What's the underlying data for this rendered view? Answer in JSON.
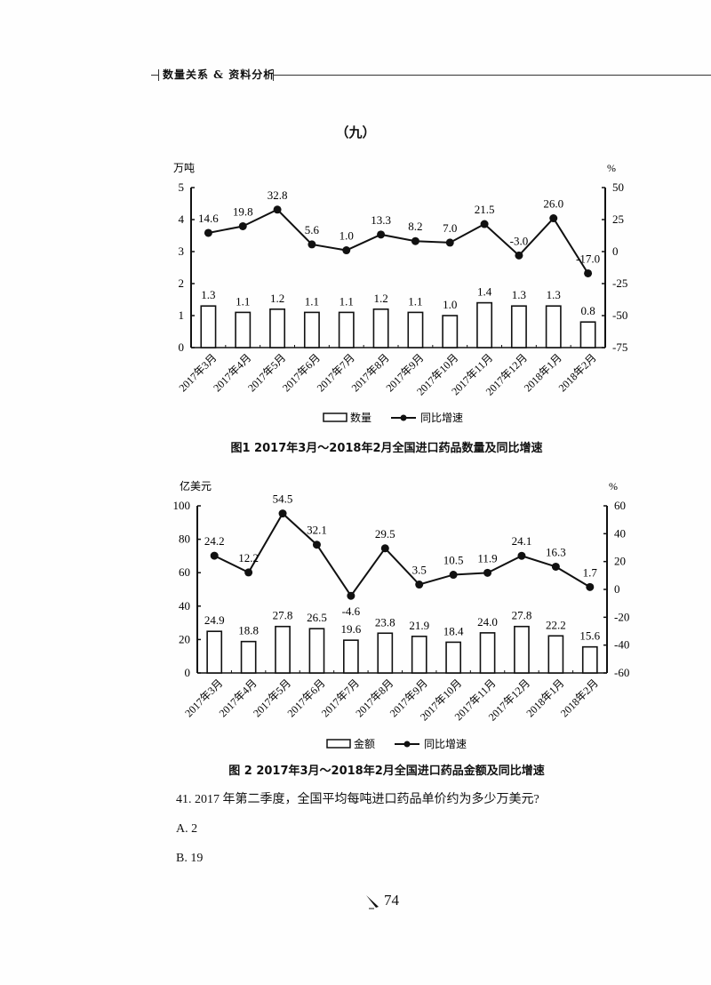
{
  "header": {
    "section": "数量关系 & 资料分析"
  },
  "section_title": "（九）",
  "chart_data": [
    {
      "type": "bar+line",
      "title": "图1  2017年3月～2018年2月全国进口药品数量及同比增速",
      "categories": [
        "2017年3月",
        "2017年4月",
        "2017年5月",
        "2017年6月",
        "2017年7月",
        "2017年8月",
        "2017年9月",
        "2017年10月",
        "2017年11月",
        "2017年12月",
        "2018年1月",
        "2018年2月"
      ],
      "series": [
        {
          "name": "数量",
          "kind": "bar",
          "axis": "left",
          "values": [
            1.3,
            1.1,
            1.2,
            1.1,
            1.1,
            1.2,
            1.1,
            1.0,
            1.4,
            1.3,
            1.3,
            0.8
          ]
        },
        {
          "name": "同比增速",
          "kind": "line",
          "axis": "right",
          "values": [
            14.6,
            19.8,
            32.8,
            5.6,
            1.0,
            13.3,
            8.2,
            7.0,
            21.5,
            -3.0,
            26.0,
            -17.0
          ]
        }
      ],
      "left_axis": {
        "label": "万吨",
        "ticks": [
          "0",
          "1",
          "2",
          "3",
          "4",
          "5"
        ],
        "ylim": [
          0,
          5
        ]
      },
      "right_axis": {
        "label": "%",
        "ticks": [
          "50",
          "25",
          "0",
          "-25",
          "-50",
          "-75"
        ],
        "ylim": [
          -75,
          50
        ]
      },
      "legend": [
        "数量",
        "同比增速"
      ],
      "grid": false
    },
    {
      "type": "bar+line",
      "title": "图 2   2017年3月～2018年2月全国进口药品金额及同比增速",
      "categories": [
        "2017年3月",
        "2017年4月",
        "2017年5月",
        "2017年6月",
        "2017年7月",
        "2017年8月",
        "2017年9月",
        "2017年10月",
        "2017年11月",
        "2017年12月",
        "2018年1月",
        "2018年2月"
      ],
      "series": [
        {
          "name": "金额",
          "kind": "bar",
          "axis": "left",
          "values": [
            24.9,
            18.8,
            27.8,
            26.5,
            19.6,
            23.8,
            21.9,
            18.4,
            24.0,
            27.8,
            22.2,
            15.6
          ]
        },
        {
          "name": "同比增速",
          "kind": "line",
          "axis": "right",
          "values": [
            24.2,
            12.2,
            54.5,
            32.1,
            -4.6,
            29.5,
            3.5,
            10.5,
            11.9,
            24.1,
            16.3,
            1.7
          ]
        }
      ],
      "left_axis": {
        "label": "亿美元",
        "ticks": [
          "0",
          "20",
          "40",
          "60",
          "80",
          "100"
        ],
        "ylim": [
          0,
          100
        ]
      },
      "right_axis": {
        "label": "%",
        "ticks": [
          "60",
          "40",
          "20",
          "0",
          "-20",
          "-40",
          "-60"
        ],
        "ylim": [
          -60,
          60
        ]
      },
      "legend": [
        "金额",
        "同比增速"
      ],
      "grid": false
    }
  ],
  "question": {
    "text": "41. 2017 年第二季度，全国平均每吨进口药品单价约为多少万美元?",
    "options": [
      "A. 2",
      "B. 19"
    ]
  },
  "page_number": "74"
}
